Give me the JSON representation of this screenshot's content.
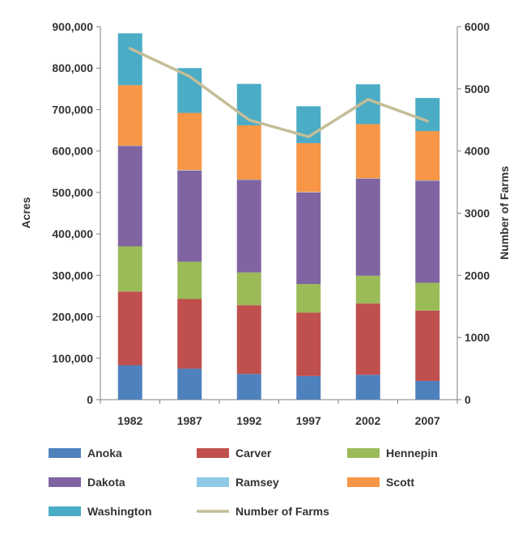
{
  "chart_data": {
    "type": "bar",
    "stacked": true,
    "categories": [
      "1982",
      "1987",
      "1992",
      "1997",
      "2002",
      "2007"
    ],
    "series": [
      {
        "name": "Anoka",
        "color": "#4F81BD",
        "values": [
          83000,
          75000,
          62000,
          57000,
          60000,
          45000
        ]
      },
      {
        "name": "Carver",
        "color": "#C0504D",
        "values": [
          178000,
          168000,
          166000,
          153000,
          172000,
          170000
        ]
      },
      {
        "name": "Hennepin",
        "color": "#9BBB59",
        "values": [
          109000,
          90000,
          79000,
          69000,
          67000,
          67000
        ]
      },
      {
        "name": "Dakota",
        "color": "#8064A2",
        "values": [
          242000,
          220000,
          223000,
          221000,
          234000,
          246000
        ]
      },
      {
        "name": "Ramsey",
        "color": "#8ECAE6",
        "values": [
          1000,
          1000,
          1000,
          1000,
          1000,
          1000
        ]
      },
      {
        "name": "Scott",
        "color": "#F79646",
        "values": [
          146000,
          138000,
          131000,
          118000,
          131000,
          119000
        ]
      },
      {
        "name": "Washington",
        "color": "#4BACC6",
        "values": [
          125000,
          108000,
          100000,
          89000,
          96000,
          80000
        ]
      }
    ],
    "line_series": {
      "name": "Number of Farms",
      "color": "#C4BD97",
      "axis": "right",
      "values": [
        5650,
        5200,
        4500,
        4230,
        4830,
        4480
      ]
    },
    "ylabel": "Acres",
    "y2label": "Number of Farms",
    "ylim": [
      0,
      900000
    ],
    "y2lim": [
      0,
      6000
    ],
    "yticks": [
      "0",
      "100,000",
      "200,000",
      "300,000",
      "400,000",
      "500,000",
      "600,000",
      "700,000",
      "800,000",
      "900,000"
    ],
    "y2ticks": [
      "0",
      "1000",
      "2000",
      "3000",
      "4000",
      "5000",
      "6000"
    ],
    "grid": false,
    "legend_position": "bottom"
  }
}
